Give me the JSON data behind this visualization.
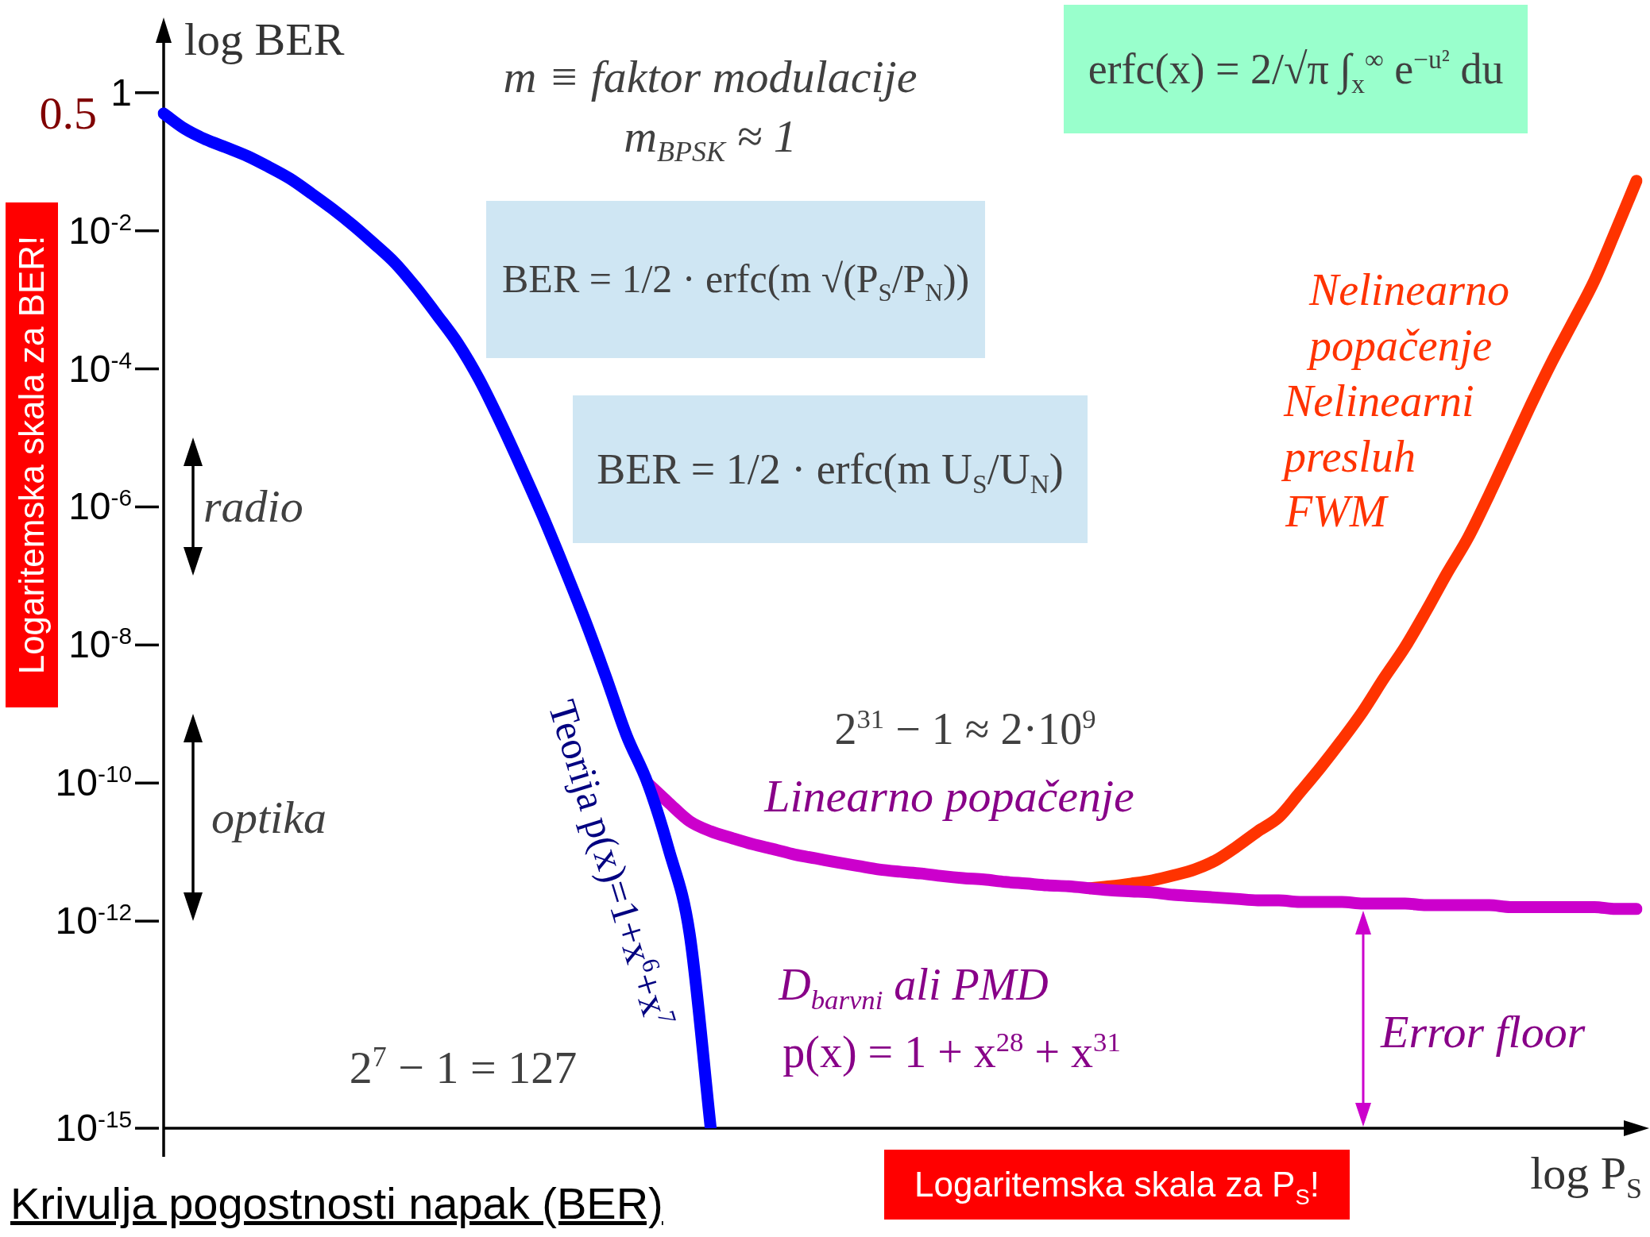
{
  "chart_data": {
    "type": "line",
    "title": "Krivulja pogostnosti napak (BER)",
    "xlabel": "log P$_{S}$",
    "ylabel": "log BER",
    "categories": [
      null,
      null,
      null,
      null,
      null,
      null,
      null,
      null,
      null,
      null,
      null,
      null,
      null,
      null,
      null,
      null,
      null,
      null,
      null,
      null,
      null,
      null,
      null,
      null,
      null,
      null,
      null,
      null,
      null,
      null,
      null,
      null,
      null,
      null,
      null,
      null,
      null,
      null,
      null,
      null,
      null,
      null,
      null,
      null,
      null,
      null,
      null,
      null,
      null,
      null,
      null,
      null,
      null,
      null,
      null,
      null,
      null,
      null,
      null,
      null,
      null,
      null,
      null,
      null,
      null,
      null,
      null,
      null,
      null,
      null,
      null
    ],
    "series": [
      {
        "color": "#0000ff",
        "values": [
          0.5,
          0.3,
          0.21,
          0.16,
          0.12,
          0.084,
          0.057,
          0.035,
          0.021,
          0.012,
          0.0065,
          0.0034,
          0.0015,
          0.0006,
          0.00023,
          7e-05,
          1.7e-05,
          3.7e-06,
          7.6e-07,
          1.4e-07,
          2.4e-08,
          3.6e-09,
          4.9e-10,
          1e-10,
          1.1e-11,
          6.5e-13,
          1e-15,
          null,
          null,
          null,
          null,
          null,
          null,
          null,
          null,
          null,
          null,
          null,
          null,
          null,
          null,
          null,
          null,
          null,
          null,
          null,
          null,
          null,
          null,
          null,
          null,
          null,
          null,
          null,
          null,
          null,
          null,
          null,
          null,
          null,
          null,
          null,
          null,
          null,
          null,
          null,
          null,
          null,
          null,
          null,
          null
        ]
      },
      {
        "color": "#cc00cc",
        "values": [
          null,
          null,
          null,
          null,
          null,
          null,
          null,
          null,
          null,
          null,
          null,
          null,
          null,
          null,
          null,
          null,
          null,
          null,
          null,
          null,
          null,
          null,
          null,
          1e-10,
          5.2e-11,
          2.8e-11,
          2e-11,
          1.6e-11,
          1.3e-11,
          1.1e-11,
          9.2e-12,
          8.1e-12,
          7.1e-12,
          6.3e-12,
          5.6e-12,
          5.2e-12,
          4.9e-12,
          4.5e-12,
          4.2e-12,
          4e-12,
          3.7e-12,
          3.5e-12,
          3.3e-12,
          3.2e-12,
          3e-12,
          2.8e-12,
          2.7e-12,
          2.6e-12,
          2.4e-12,
          2.3e-12,
          2.2e-12,
          2.1e-12,
          2e-12,
          2e-12,
          1.9e-12,
          1.9e-12,
          1.9e-12,
          1.8e-12,
          1.8e-12,
          1.8e-12,
          1.7e-12,
          1.7e-12,
          1.7e-12,
          1.7e-12,
          1.6e-12,
          1.6e-12,
          1.6e-12,
          1.6e-12,
          1.6e-12,
          1.5e-12,
          1.5e-12
        ]
      },
      {
        "color": "#ff3300",
        "values": [
          null,
          null,
          null,
          null,
          null,
          null,
          null,
          null,
          null,
          null,
          null,
          null,
          null,
          null,
          null,
          null,
          null,
          null,
          null,
          null,
          null,
          null,
          null,
          null,
          null,
          null,
          null,
          null,
          null,
          null,
          null,
          null,
          null,
          null,
          null,
          null,
          null,
          null,
          null,
          null,
          null,
          null,
          null,
          null,
          3e-12,
          3.2e-12,
          3.5e-12,
          3.9e-12,
          4.6e-12,
          5.6e-12,
          7.6e-12,
          1.2e-11,
          2e-11,
          3.2e-11,
          7.3e-11,
          1.7e-10,
          4.2e-10,
          1.1e-09,
          3.3e-09,
          9.3e-09,
          3.1e-08,
          1.1e-07,
          3.6e-07,
          1.5e-06,
          6.8e-06,
          3.1e-05,
          0.00013,
          0.00049,
          0.0019,
          0.0098,
          0.053
        ]
      }
    ],
    "ylim": [
      1e-15,
      5
    ],
    "yticks": [
      1,
      {
        "value": 0.01,
        "label": "10$^{-2}$"
      },
      {
        "value": 0.0001,
        "label": "10$^{-4}$"
      },
      {
        "value": 1e-06,
        "label": "10$^{-6}$"
      },
      {
        "value": 1e-08,
        "label": "10$^{-8}$"
      },
      {
        "value": 1e-10,
        "label": "10$^{-10}$"
      },
      {
        "value": 1e-12,
        "label": "10$^{-12}$"
      },
      {
        "value": 1e-15,
        "label": "10$^{-15}$"
      }
    ],
    "log": true,
    "tick_labels": "y",
    "marker": "none",
    "line_style": "solid",
    "annotations": [
      "0.5",
      "m ≡ faktor modulacije",
      "m$_{BPSK}$ ≈ 1",
      "erfc(x) = 2/√π ∫$_{x}$$^{∞}$ e$^{−u²}$ du",
      "BER = 1/2 · erfc(m √(P$_{S}$/P$_{N}$))",
      "BER = 1/2 · erfc(m U$_{S}$/U$_{N}$)",
      "Nelinearno popačenje",
      "Nelinearni presluh",
      "FWM",
      "2$^{31}$ − 1 ≈ 2·10$^{9}$",
      "Linearno popačenje",
      "D$_{barvni}$ ali PMD",
      "p(x) = 1 + x$^{28}$ + x$^{31}$",
      "Error floor",
      "Teorija p(x)=1+x$^{6}$+x$^{7}$",
      "2$^{7}$ − 1 = 127",
      "radio",
      "optika",
      "Logaritemska skala za BER!",
      "Logaritemska skala za P$_{S}$!"
    ]
  }
}
